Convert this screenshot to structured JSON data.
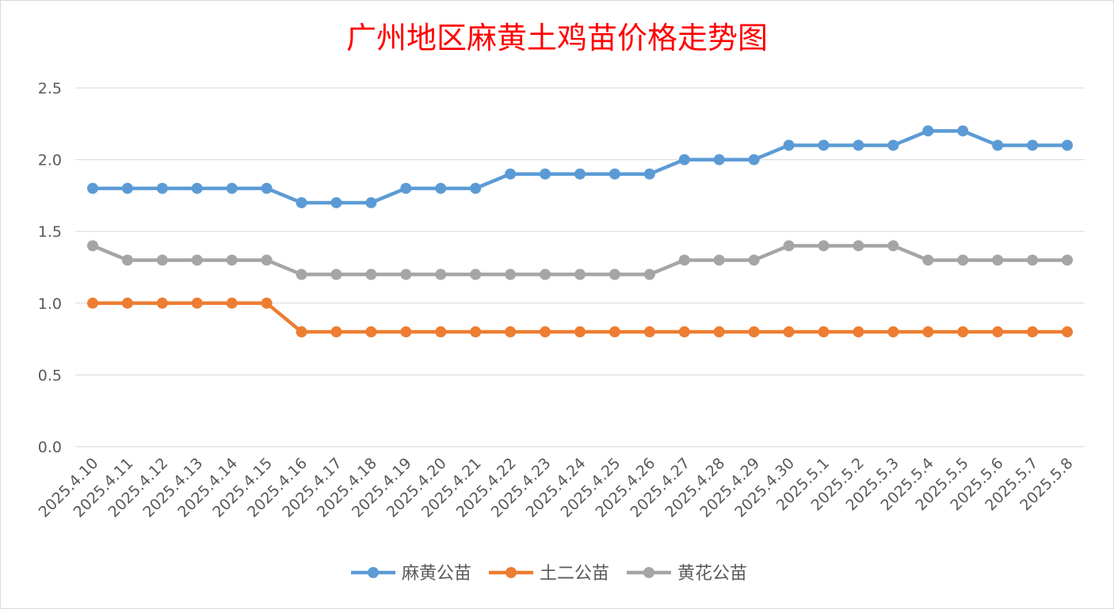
{
  "chart_data": {
    "type": "line",
    "title": "广州地区麻黄土鸡苗价格走势图",
    "xlabel": "",
    "ylabel": "",
    "ylim": [
      0,
      2.5
    ],
    "yticks": [
      "0.0",
      "0.5",
      "1.0",
      "1.5",
      "2.0",
      "2.5"
    ],
    "grid": true,
    "legend_position": "bottom",
    "categories": [
      "2025.4.10",
      "2025.4.11",
      "2025.4.12",
      "2025.4.13",
      "2025.4.14",
      "2025.4.15",
      "2025.4.16",
      "2025.4.17",
      "2025.4.18",
      "2025.4.19",
      "2025.4.20",
      "2025.4.21",
      "2025.4.22",
      "2025.4.23",
      "2025.4.24",
      "2025.4.25",
      "2025.4.26",
      "2025.4.27",
      "2025.4.28",
      "2025.4.29",
      "2025.4.30",
      "2025.5.1",
      "2025.5.2",
      "2025.5.3",
      "2025.5.4",
      "2025.5.5",
      "2025.5.6",
      "2025.5.7",
      "2025.5.8"
    ],
    "series": [
      {
        "name": "麻黄公苗",
        "color": "#5b9bd5",
        "values": [
          1.8,
          1.8,
          1.8,
          1.8,
          1.8,
          1.8,
          1.7,
          1.7,
          1.7,
          1.8,
          1.8,
          1.8,
          1.9,
          1.9,
          1.9,
          1.9,
          1.9,
          2.0,
          2.0,
          2.0,
          2.1,
          2.1,
          2.1,
          2.1,
          2.2,
          2.2,
          2.1,
          2.1,
          2.1
        ]
      },
      {
        "name": "土二公苗",
        "color": "#ed7d31",
        "values": [
          1.0,
          1.0,
          1.0,
          1.0,
          1.0,
          1.0,
          0.8,
          0.8,
          0.8,
          0.8,
          0.8,
          0.8,
          0.8,
          0.8,
          0.8,
          0.8,
          0.8,
          0.8,
          0.8,
          0.8,
          0.8,
          0.8,
          0.8,
          0.8,
          0.8,
          0.8,
          0.8,
          0.8,
          0.8
        ]
      },
      {
        "name": "黄花公苗",
        "color": "#a5a5a5",
        "values": [
          1.4,
          1.3,
          1.3,
          1.3,
          1.3,
          1.3,
          1.2,
          1.2,
          1.2,
          1.2,
          1.2,
          1.2,
          1.2,
          1.2,
          1.2,
          1.2,
          1.2,
          1.3,
          1.3,
          1.3,
          1.4,
          1.4,
          1.4,
          1.4,
          1.3,
          1.3,
          1.3,
          1.3,
          1.3
        ]
      }
    ]
  }
}
